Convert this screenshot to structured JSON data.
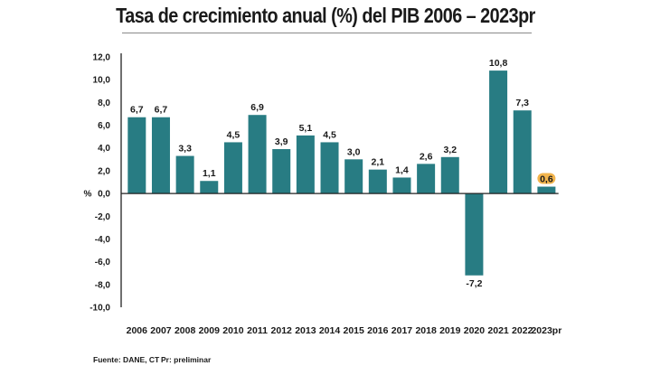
{
  "chart_data": {
    "type": "bar",
    "title": "Tasa de crecimiento anual (%) del PIB 2006 – 2023pr",
    "ylabel": "%",
    "categories": [
      "2006",
      "2007",
      "2008",
      "2009",
      "2010",
      "2011",
      "2012",
      "2013",
      "2014",
      "2015",
      "2016",
      "2017",
      "2018",
      "2019",
      "2020",
      "2021",
      "2022",
      "2023pr"
    ],
    "values": [
      6.7,
      6.7,
      3.3,
      1.1,
      4.5,
      6.9,
      3.9,
      5.1,
      4.5,
      3.0,
      2.1,
      1.4,
      2.6,
      3.2,
      -7.2,
      10.8,
      7.3,
      0.6
    ],
    "value_labels": [
      "6,7",
      "6,7",
      "3,3",
      "1,1",
      "4,5",
      "6,9",
      "3,9",
      "5,1",
      "4,5",
      "3,0",
      "2,1",
      "1,4",
      "2,6",
      "3,2",
      "-7,2",
      "10,8",
      "7,3",
      "0,6"
    ],
    "yticks": [
      12,
      10,
      8,
      6,
      4,
      2,
      0,
      -2,
      -4,
      -6,
      -8,
      -10
    ],
    "ytick_labels": [
      "12,0",
      "10,0",
      "8,0",
      "6,0",
      "4,0",
      "2,0",
      "0,0",
      "-2,0",
      "-4,0",
      "-6,0",
      "-8,0",
      "-10,0"
    ],
    "ylim": [
      -10,
      12
    ],
    "grid": false,
    "legend": "none",
    "highlighted_category": "2023pr",
    "colors": {
      "bar": "#287c83",
      "highlight_badge": "#f2b44c",
      "axis": "#222222"
    }
  },
  "footer": {
    "source": "Fuente: DANE, CT",
    "note": "Pr: preliminar"
  }
}
